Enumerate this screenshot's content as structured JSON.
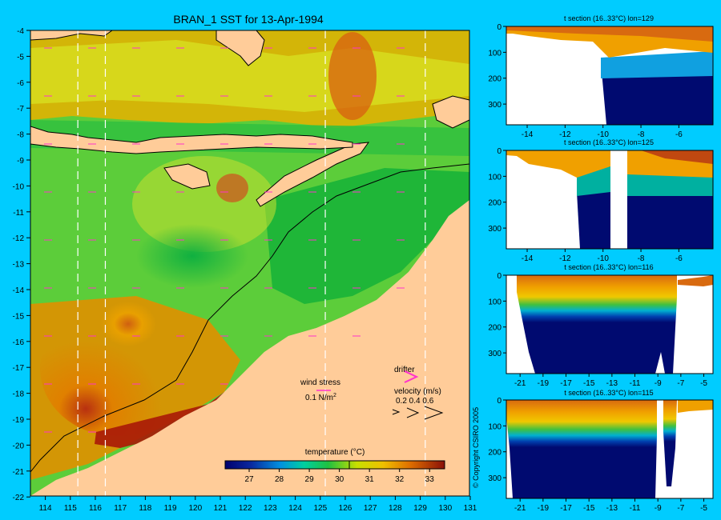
{
  "main_map": {
    "title": "BRAN_1 SST for 13-Apr-1994",
    "lon_ticks": [
      114,
      115,
      116,
      117,
      118,
      119,
      120,
      121,
      122,
      123,
      124,
      125,
      126,
      127,
      128,
      129,
      130,
      131
    ],
    "lat_ticks": [
      -4,
      -5,
      -6,
      -7,
      -8,
      -9,
      -10,
      -11,
      -12,
      -13,
      -14,
      -15,
      -16,
      -17,
      -18,
      -19,
      -20,
      -21,
      -22
    ],
    "section_lons": [
      115.3,
      116.4,
      125.2,
      129.2
    ],
    "wind_stress_label": "wind stress",
    "wind_stress_value": "0.1 N/m",
    "wind_stress_sup": "2",
    "drifter_label": "drifter",
    "velocity_label": "velocity (m/s)",
    "velocity_values": "0.2 0.4 0.6",
    "colorbar_title": "temperature (°C)",
    "colorbar_ticks": [
      27,
      28,
      29,
      30,
      31,
      32,
      33
    ],
    "colorbar_range": [
      26.2,
      33.5
    ],
    "colorbar_marker": 30.33
  },
  "sections": [
    {
      "title": "t section (16..33°C) lon=129",
      "x_ticks": [
        -14,
        -12,
        -10,
        -8,
        -6
      ],
      "x_range": [
        -15.1,
        -4.2
      ],
      "depth_ticks": [
        0,
        100,
        200,
        300
      ],
      "depth_max": 380
    },
    {
      "title": "t section (16..33°C) lon=125",
      "x_ticks": [
        -14,
        -12,
        -10,
        -8,
        -6
      ],
      "x_range": [
        -15.1,
        -4.2
      ],
      "depth_ticks": [
        0,
        100,
        200,
        300
      ],
      "depth_max": 380
    },
    {
      "title": "t section (16..33°C) lon=116",
      "x_ticks": [
        -21,
        -19,
        -17,
        -15,
        -13,
        -11,
        -9,
        -7,
        -5
      ],
      "x_range": [
        -22.2,
        -4.2
      ],
      "depth_ticks": [
        0,
        100,
        200,
        300
      ],
      "depth_max": 380
    },
    {
      "title": "t section (16..33°C) lon=115",
      "x_ticks": [
        -21,
        -19,
        -17,
        -15,
        -13,
        -11,
        -9,
        -7,
        -5
      ],
      "x_range": [
        -22.2,
        -4.2
      ],
      "depth_ticks": [
        0,
        100,
        200,
        300
      ],
      "depth_max": 380
    }
  ],
  "copyright": "© Copyright CSIRO 2005",
  "colors": {
    "background": "#00ccff",
    "land": "#ffcc99",
    "deep": "#000a70"
  }
}
